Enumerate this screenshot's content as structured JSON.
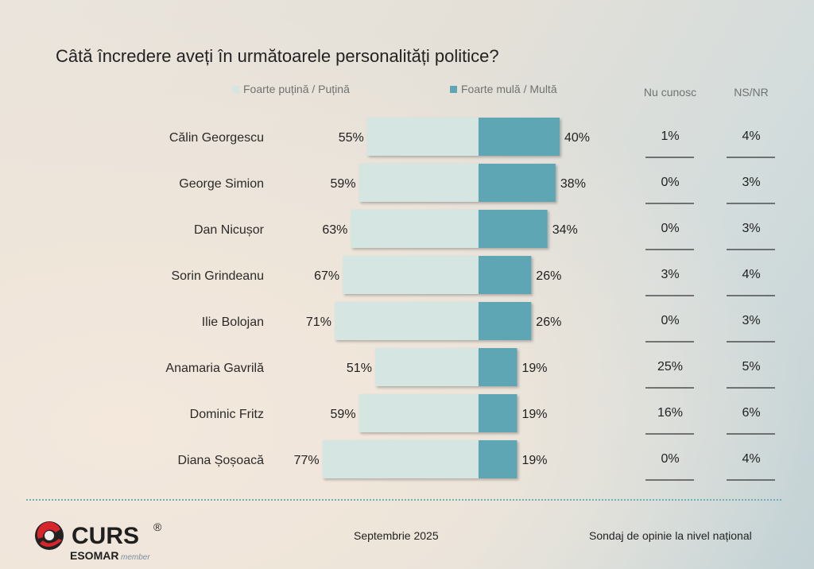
{
  "title": "Câtă încredere aveți în următoarele personalități politice?",
  "colors": {
    "low": "#d5e5e1",
    "high": "#5fa6b5",
    "rule": "#333333"
  },
  "headers": {
    "unknown": "Nu cunosc",
    "nsnr": "NS/NR"
  },
  "footer": {
    "date": "Septembrie 2025",
    "survey": "Sondaj de opinie la nivel național",
    "brand": "CURS",
    "registered": "®",
    "esomar": "ESOMAR",
    "member": "member"
  },
  "chart_data": {
    "type": "bar",
    "layout": "diverging-horizontal",
    "title": "Câtă încredere aveți în următoarele personalități politice?",
    "categories": [
      "Călin Georgescu",
      "George Simion",
      "Dan Nicușor",
      "Sorin Grindeanu",
      "Ilie Bolojan",
      "Anamaria Gavrilă",
      "Dominic Fritz",
      "Diana Șoșoacă"
    ],
    "series": [
      {
        "name": "Foarte puțină / Puțină",
        "values": [
          55,
          59,
          63,
          67,
          71,
          51,
          59,
          77
        ],
        "color": "#d5e5e1"
      },
      {
        "name": "Foarte mulă / Multă",
        "values": [
          40,
          38,
          34,
          26,
          26,
          19,
          19,
          19
        ],
        "color": "#5fa6b5"
      },
      {
        "name": "Nu cunosc",
        "values": [
          1,
          0,
          0,
          3,
          0,
          25,
          16,
          0
        ]
      },
      {
        "name": "NS/NR",
        "values": [
          4,
          3,
          3,
          4,
          3,
          5,
          6,
          4
        ]
      }
    ],
    "unit": "%",
    "legend": "top"
  }
}
